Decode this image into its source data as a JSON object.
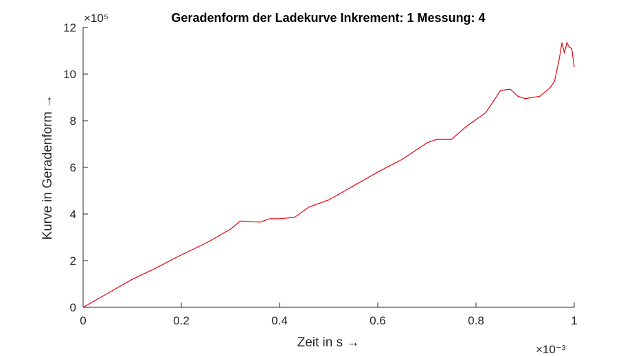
{
  "chart_data": {
    "type": "line",
    "title": "Geradenform der Ladekurve Inkrement: 1 Messung: 4",
    "xlabel": "Zeit in s →",
    "ylabel": "Kurve in Geradenform →",
    "x_exponent_label": "×10⁻³",
    "y_exponent_label": "×10⁵",
    "xlim": [
      0,
      1
    ],
    "ylim": [
      0,
      12
    ],
    "x_ticks": [
      0,
      0.2,
      0.4,
      0.6,
      0.8,
      1
    ],
    "x_tick_labels": [
      "0",
      "0.2",
      "0.4",
      "0.6",
      "0.8",
      "1"
    ],
    "y_ticks": [
      0,
      2,
      4,
      6,
      8,
      10,
      12
    ],
    "y_tick_labels": [
      "0",
      "2",
      "4",
      "6",
      "8",
      "10",
      "12"
    ],
    "grid": false,
    "series": [
      {
        "color": "#e8000b",
        "x": [
          0,
          0.05,
          0.1,
          0.15,
          0.2,
          0.25,
          0.3,
          0.32,
          0.36,
          0.38,
          0.4,
          0.43,
          0.46,
          0.5,
          0.55,
          0.6,
          0.65,
          0.7,
          0.72,
          0.75,
          0.78,
          0.82,
          0.85,
          0.87,
          0.885,
          0.9,
          0.93,
          0.95,
          0.96,
          0.97,
          0.975,
          0.98,
          0.985,
          0.99,
          0.995,
          1.0
        ],
        "y": [
          0,
          0.6,
          1.2,
          1.7,
          2.25,
          2.75,
          3.35,
          3.7,
          3.65,
          3.8,
          3.8,
          3.85,
          4.3,
          4.6,
          5.2,
          5.8,
          6.35,
          7.05,
          7.2,
          7.2,
          7.75,
          8.35,
          9.3,
          9.35,
          9.05,
          8.95,
          9.05,
          9.4,
          9.7,
          10.7,
          11.35,
          10.9,
          11.35,
          11.15,
          11.1,
          10.3
        ]
      }
    ]
  }
}
